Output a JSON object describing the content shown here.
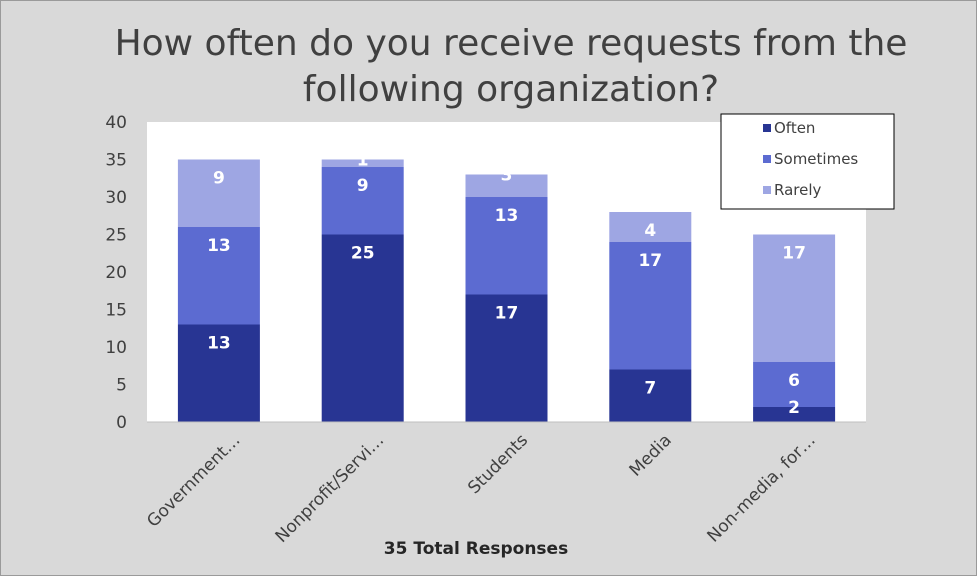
{
  "chart_data": {
    "type": "bar",
    "stacked": true,
    "title": "How often do you receive requests from the following organization?",
    "xlabel": "35 Total Responses",
    "ylabel": "",
    "ylim": [
      0,
      40
    ],
    "yticks": [
      0,
      5,
      10,
      15,
      20,
      25,
      30,
      35,
      40
    ],
    "grid": false,
    "legend_position": "top-right",
    "categories": [
      "Government…",
      "Nonprofit/Servi…",
      "Students",
      "Media",
      "Non-media, for…"
    ],
    "series": [
      {
        "name": "Often",
        "color": "#283593",
        "values": [
          13,
          25,
          17,
          7,
          2
        ]
      },
      {
        "name": "Sometimes",
        "color": "#5c6bd1",
        "values": [
          13,
          9,
          13,
          17,
          6
        ]
      },
      {
        "name": "Rarely",
        "color": "#9ea6e3",
        "values": [
          9,
          1,
          3,
          4,
          17
        ]
      }
    ]
  }
}
